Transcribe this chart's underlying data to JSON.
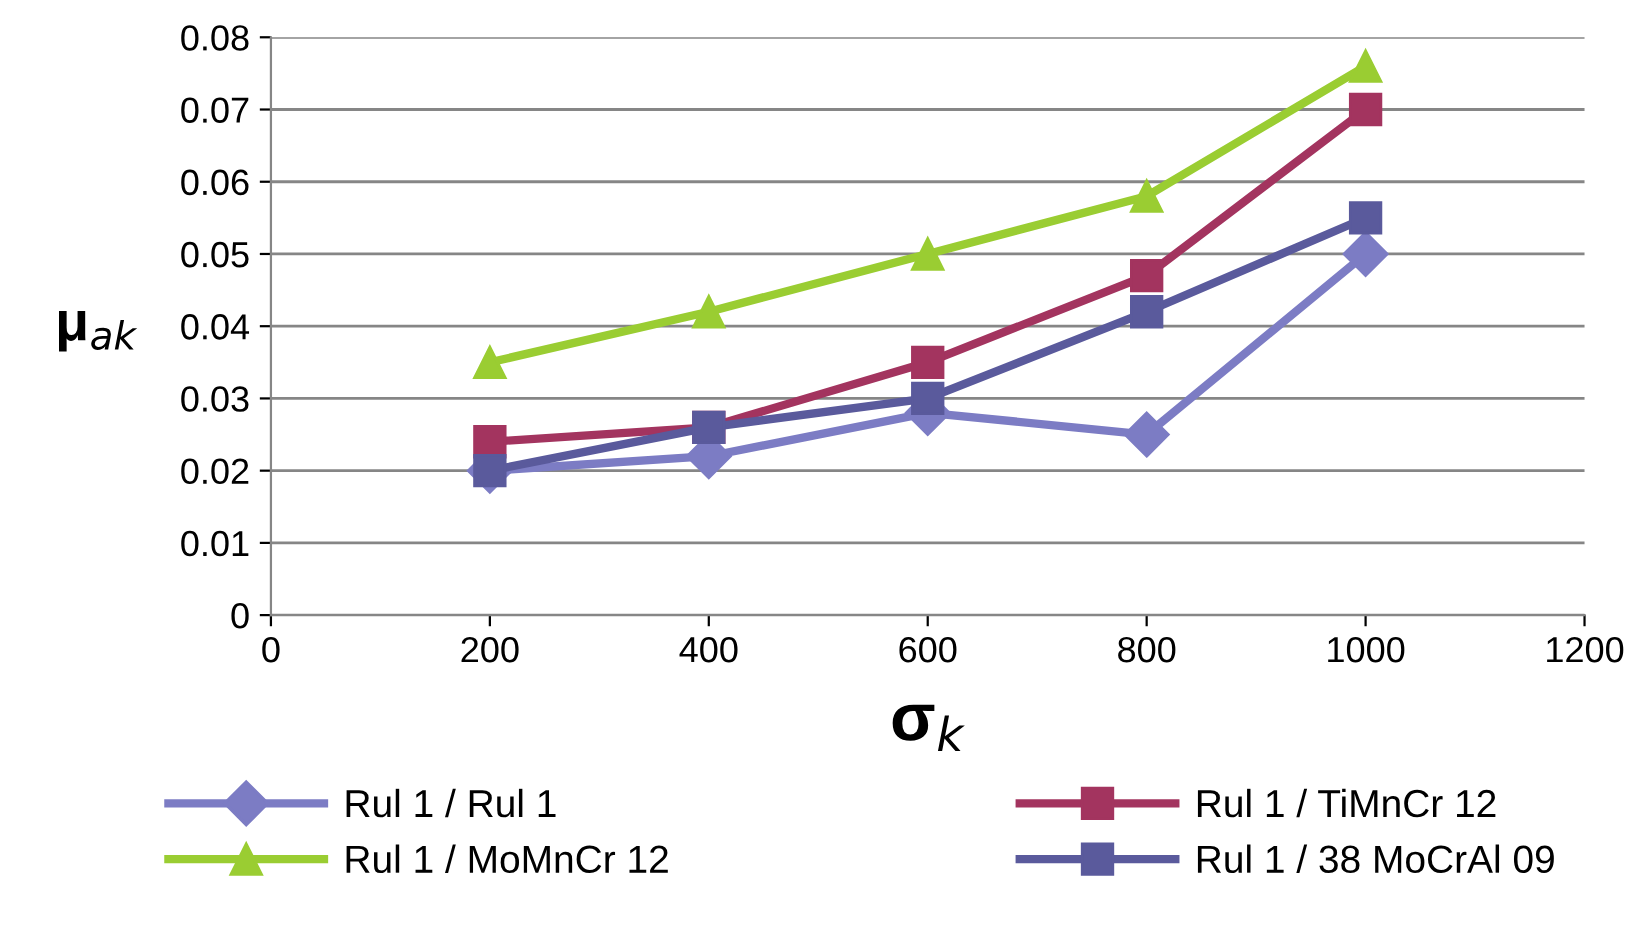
{
  "chart_data": {
    "type": "line",
    "xlabel": "σ$_{k}$",
    "ylabel": "μ$_{ak}$",
    "x": [
      200,
      400,
      600,
      800,
      1000
    ],
    "series": [
      {
        "name": "Rul 1 / Rul 1",
        "color": "#7c7cc4",
        "marker": "diamond",
        "values": [
          0.02,
          0.022,
          0.028,
          0.025,
          0.05
        ]
      },
      {
        "name": "Rul 1 / TiMnCr 12",
        "color": "#a3345f",
        "marker": "square",
        "values": [
          0.024,
          0.026,
          0.035,
          0.047,
          0.07
        ]
      },
      {
        "name": "Rul 1 / MoMnCr 12",
        "color": "#9acd32",
        "marker": "triangle",
        "values": [
          0.035,
          0.042,
          0.05,
          0.058,
          0.076
        ]
      },
      {
        "name": "Rul 1 / 38 MoCrAl 09",
        "color": "#5a5a9c",
        "marker": "square",
        "values": [
          0.02,
          0.026,
          0.03,
          0.042,
          0.055
        ]
      }
    ],
    "xlim": [
      0,
      1200
    ],
    "xticks": [
      0,
      200,
      400,
      600,
      800,
      1000,
      1200
    ],
    "ylim": [
      0,
      0.08
    ],
    "yticks": [
      0,
      0.01,
      0.02,
      0.03,
      0.04,
      0.05,
      0.06,
      0.07,
      0.08
    ],
    "grid": "y",
    "legend": "bottom",
    "line_style": "solid"
  }
}
